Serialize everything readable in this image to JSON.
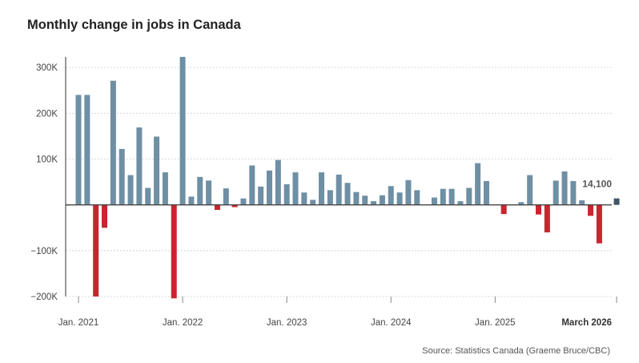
{
  "chart_data": {
    "type": "bar",
    "title": "Monthly change in jobs in Canada",
    "source": "Source: Statistics Canada (Graeme Bruce/CBC)",
    "xlabel": "",
    "ylabel": "",
    "ylim": [
      -200000,
      323000
    ],
    "yticks": [
      {
        "value": 300000,
        "label": "300K"
      },
      {
        "value": 200000,
        "label": "200K"
      },
      {
        "value": 100000,
        "label": "100K"
      },
      {
        "value": 0,
        "label": ""
      },
      {
        "value": -100000,
        "label": "−100K"
      },
      {
        "value": -200000,
        "label": "−200K"
      }
    ],
    "xticks": [
      {
        "index": 0,
        "label": "Jan. 2021",
        "bold": false
      },
      {
        "index": 12,
        "label": "Jan. 2022",
        "bold": false
      },
      {
        "index": 24,
        "label": "Jan. 2023",
        "bold": false
      },
      {
        "index": 36,
        "label": "Jan. 2024",
        "bold": false
      },
      {
        "index": 48,
        "label": "Jan. 2025",
        "bold": false
      },
      {
        "index": 62,
        "label": "March 2026",
        "bold": true
      }
    ],
    "colors": {
      "positive": "#6e8fa4",
      "negative": "#c8252f",
      "latest": "#3e5566"
    },
    "annotation": {
      "index": 62,
      "label": "14,100"
    },
    "values": [
      240000,
      240000,
      -200000,
      -50000,
      271000,
      122000,
      65000,
      169000,
      37000,
      149000,
      71000,
      -204000,
      323000,
      18000,
      61000,
      53000,
      -11000,
      36000,
      -5000,
      14000,
      86000,
      40000,
      75000,
      98000,
      45000,
      71000,
      27000,
      11000,
      71000,
      32000,
      66000,
      48000,
      28000,
      20000,
      8000,
      21000,
      41000,
      27000,
      54000,
      32000,
      0,
      16000,
      35000,
      35000,
      8000,
      37000,
      91000,
      52000,
      0,
      -20000,
      0,
      6000,
      65000,
      -21000,
      -60000,
      53000,
      73000,
      52000,
      10000,
      -24000,
      -84000,
      0,
      14100
    ]
  }
}
